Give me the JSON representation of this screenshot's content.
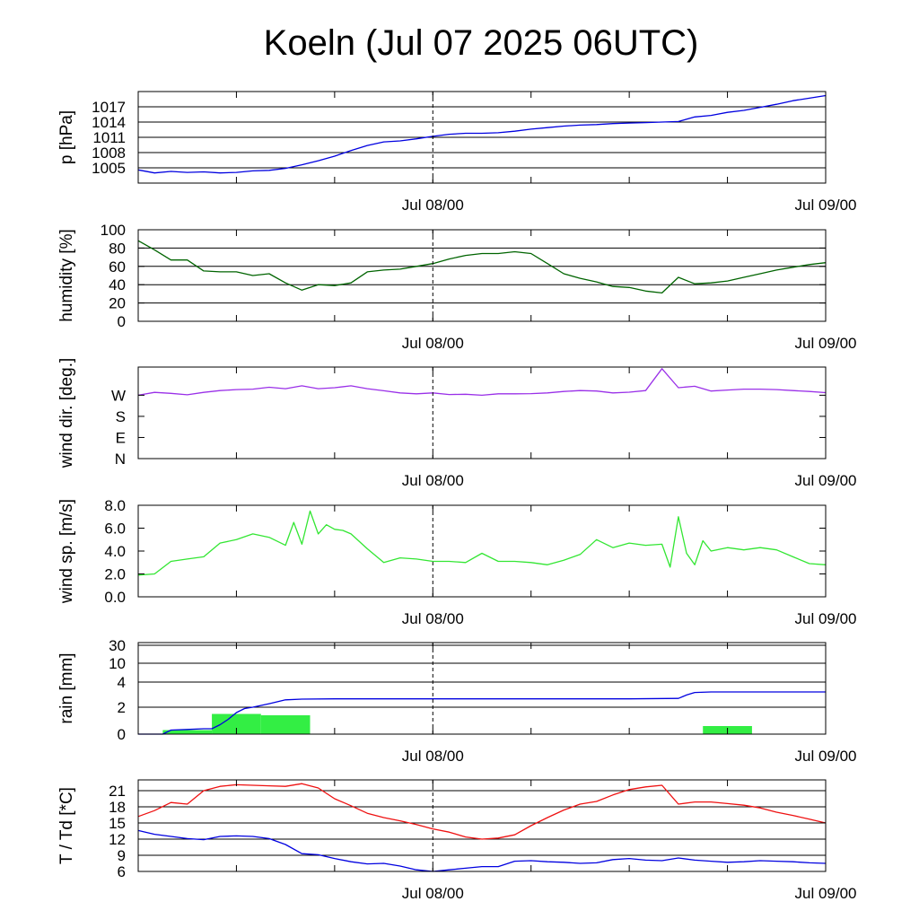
{
  "title": "Koeln (Jul 07 2025 06UTC)",
  "chart_data": [
    {
      "type": "line",
      "ylabel": "p [hPa]",
      "ylim": [
        1002,
        1020
      ],
      "yticks": [
        1005,
        1008,
        1011,
        1014,
        1017
      ],
      "ytick_labels": [
        "1005",
        "1008",
        "1011",
        "1014",
        "1017"
      ],
      "grid": "horizontal",
      "x_tick_labels": [
        "Jul 08/00",
        "Jul 09/00"
      ],
      "series": [
        {
          "color": "#0000e0",
          "x": [
            0,
            1,
            2,
            3,
            4,
            5,
            6,
            7,
            8,
            9,
            10,
            11,
            12,
            13,
            14,
            15,
            16,
            17,
            18,
            19,
            20,
            21,
            22,
            23,
            24,
            25,
            26,
            27,
            28,
            29,
            30,
            31,
            32,
            33,
            34,
            35,
            36,
            37,
            38,
            39,
            40,
            41,
            42
          ],
          "y": [
            1004.6,
            1004.0,
            1004.3,
            1004.1,
            1004.2,
            1004.0,
            1004.1,
            1004.4,
            1004.5,
            1004.9,
            1005.6,
            1006.4,
            1007.3,
            1008.4,
            1009.4,
            1010.1,
            1010.3,
            1010.7,
            1011.2,
            1011.6,
            1011.8,
            1011.8,
            1011.9,
            1012.2,
            1012.6,
            1012.9,
            1013.2,
            1013.4,
            1013.5,
            1013.7,
            1013.8,
            1013.9,
            1014.0,
            1014.1,
            1015.0,
            1015.3,
            1015.9,
            1016.3,
            1016.9,
            1017.5,
            1018.2,
            1018.7,
            1019.2
          ]
        }
      ]
    },
    {
      "type": "line",
      "ylabel": "humidity [%]",
      "ylim": [
        0,
        100
      ],
      "yticks": [
        0,
        20,
        40,
        60,
        80,
        100
      ],
      "ytick_labels": [
        "0",
        "20",
        "40",
        "60",
        "80",
        "100"
      ],
      "grid": "horizontal",
      "x_tick_labels": [
        "Jul 08/00",
        "Jul 09/00"
      ],
      "series": [
        {
          "color": "#006400",
          "x": [
            0,
            1,
            2,
            3,
            4,
            5,
            6,
            7,
            8,
            9,
            10,
            11,
            12,
            13,
            14,
            15,
            16,
            17,
            18,
            19,
            20,
            21,
            22,
            23,
            24,
            25,
            26,
            27,
            28,
            29,
            30,
            31,
            32,
            33,
            34,
            35,
            36,
            37,
            38,
            39,
            40,
            41,
            42
          ],
          "y": [
            88,
            78,
            67,
            67,
            55,
            54,
            54,
            50,
            52,
            42,
            34,
            40,
            39,
            42,
            54,
            56,
            57,
            60,
            63,
            68,
            72,
            74,
            74,
            76,
            74,
            63,
            52,
            47,
            43,
            38,
            37,
            33,
            31,
            48,
            41,
            42,
            44,
            48,
            52,
            56,
            59,
            62,
            64
          ]
        }
      ]
    },
    {
      "type": "line",
      "ylabel": "wind dir. [deg.]",
      "ylim": [
        0,
        390
      ],
      "yticks": [
        0,
        90,
        180,
        270
      ],
      "ytick_labels": [
        "N",
        "E",
        "S",
        "W"
      ],
      "grid": "none",
      "x_tick_labels": [
        "Jul 08/00",
        "Jul 09/00"
      ],
      "series": [
        {
          "color": "#9a30e8",
          "x": [
            0,
            1,
            2,
            3,
            4,
            5,
            6,
            7,
            8,
            9,
            10,
            11,
            12,
            13,
            14,
            15,
            16,
            17,
            18,
            19,
            20,
            21,
            22,
            23,
            24,
            25,
            26,
            27,
            28,
            29,
            30,
            31,
            32,
            33,
            34,
            35,
            36,
            37,
            38,
            39,
            40,
            41,
            42
          ],
          "y": [
            270,
            282,
            278,
            272,
            282,
            290,
            294,
            296,
            304,
            298,
            310,
            298,
            302,
            310,
            298,
            289,
            280,
            276,
            280,
            273,
            274,
            270,
            276,
            276,
            277,
            280,
            286,
            290,
            288,
            280,
            283,
            290,
            383,
            302,
            308,
            288,
            292,
            296,
            296,
            294,
            290,
            286,
            281
          ]
        }
      ]
    },
    {
      "type": "line",
      "ylabel": "wind sp. [m/s]",
      "ylim": [
        0,
        8
      ],
      "yticks": [
        0,
        2,
        4,
        6,
        8
      ],
      "ytick_labels": [
        "0.0",
        "2.0",
        "4.0",
        "6.0",
        "8.0"
      ],
      "grid": "none",
      "x_tick_labels": [
        "Jul 08/00",
        "Jul 09/00"
      ],
      "series": [
        {
          "color": "#33e633",
          "x": [
            0,
            1,
            2,
            3,
            4,
            5,
            6,
            7,
            8,
            9,
            9.5,
            10,
            10.5,
            11,
            11.5,
            12,
            12.5,
            13,
            14,
            15,
            16,
            17,
            18,
            19,
            20,
            21,
            22,
            23,
            24,
            25,
            26,
            27,
            28,
            29,
            30,
            31,
            32,
            32.5,
            33,
            33.5,
            34,
            34.5,
            35,
            36,
            37,
            38,
            39,
            40,
            41,
            42
          ],
          "y": [
            1.9,
            2.0,
            3.1,
            3.3,
            3.5,
            4.7,
            5.0,
            5.5,
            5.2,
            4.5,
            6.5,
            4.6,
            7.5,
            5.5,
            6.3,
            5.9,
            5.8,
            5.5,
            4.2,
            3.0,
            3.4,
            3.3,
            3.1,
            3.1,
            3.0,
            3.8,
            3.1,
            3.1,
            3.0,
            2.8,
            3.2,
            3.7,
            5.0,
            4.3,
            4.7,
            4.5,
            4.6,
            2.6,
            7.0,
            3.8,
            2.8,
            4.9,
            4.0,
            4.3,
            4.1,
            4.3,
            4.1,
            3.5,
            2.9,
            2.8
          ]
        }
      ]
    },
    {
      "type": "bar",
      "ylabel": "rain [mm]",
      "ylim": [
        0,
        30
      ],
      "yticks": [
        0,
        2,
        4,
        10,
        30
      ],
      "ytick_labels": [
        "0",
        "2",
        "4",
        "10",
        "30"
      ],
      "scale": "nonlinear",
      "grid": "horizontal",
      "x_tick_labels": [
        "Jul 08/00",
        "Jul 09/00"
      ],
      "bars": {
        "color": "#33ee44",
        "x0": [
          1.5,
          4.5,
          7.5,
          34.5
        ],
        "x1": [
          4.5,
          7.5,
          10.5,
          37.5
        ],
        "values": [
          0.3,
          1.5,
          1.4,
          0.6
        ]
      },
      "series": [
        {
          "color": "#0000e0",
          "x": [
            0,
            1.5,
            2,
            3,
            4,
            4.5,
            5,
            5.5,
            6,
            6.5,
            7,
            8,
            9,
            10,
            12,
            15,
            20,
            25,
            30,
            33,
            33.5,
            34,
            35,
            42
          ],
          "y": [
            0,
            0,
            0.3,
            0.35,
            0.4,
            0.4,
            0.7,
            1.1,
            1.6,
            1.9,
            2.0,
            2.2,
            2.45,
            2.5,
            2.52,
            2.52,
            2.52,
            2.52,
            2.52,
            2.55,
            2.8,
            3.0,
            3.05,
            3.05
          ]
        }
      ]
    },
    {
      "type": "line",
      "ylabel": "T / Td [*C]",
      "ylim": [
        6,
        23
      ],
      "yticks": [
        6,
        9,
        12,
        15,
        18,
        21
      ],
      "ytick_labels": [
        "6",
        "9",
        "12",
        "15",
        "18",
        "21"
      ],
      "grid": "horizontal",
      "x_tick_labels": [
        "Jul 08/00",
        "Jul 09/00"
      ],
      "series": [
        {
          "color": "#ee1111",
          "x": [
            0,
            1,
            2,
            3,
            4,
            5,
            6,
            7,
            8,
            9,
            10,
            11,
            12,
            13,
            14,
            15,
            16,
            17,
            18,
            19,
            20,
            21,
            22,
            23,
            24,
            25,
            26,
            27,
            28,
            29,
            30,
            31,
            32,
            33,
            34,
            35,
            36,
            37,
            38,
            39,
            40,
            41,
            42
          ],
          "y": [
            16.2,
            17.3,
            18.8,
            18.5,
            21.0,
            21.8,
            22.1,
            22.0,
            21.9,
            21.8,
            22.3,
            21.5,
            19.5,
            18.2,
            16.8,
            16.0,
            15.4,
            14.7,
            13.9,
            13.3,
            12.4,
            12.0,
            12.2,
            12.8,
            14.5,
            16.0,
            17.4,
            18.5,
            19.0,
            20.2,
            21.2,
            21.7,
            22.0,
            18.5,
            18.9,
            18.9,
            18.6,
            18.3,
            17.8,
            17.0,
            16.4,
            15.7,
            15.0
          ]
        },
        {
          "color": "#0000e0",
          "x": [
            0,
            1,
            2,
            3,
            4,
            5,
            6,
            7,
            8,
            9,
            10,
            11,
            12,
            13,
            14,
            15,
            16,
            17,
            18,
            19,
            20,
            21,
            22,
            23,
            24,
            25,
            26,
            27,
            28,
            29,
            30,
            31,
            32,
            33,
            34,
            35,
            36,
            37,
            38,
            39,
            40,
            41,
            42
          ],
          "y": [
            13.6,
            12.9,
            12.5,
            12.1,
            11.9,
            12.5,
            12.6,
            12.5,
            12.1,
            11.0,
            9.3,
            9.1,
            8.4,
            7.8,
            7.4,
            7.5,
            7.0,
            6.3,
            6.0,
            6.3,
            6.6,
            6.9,
            6.9,
            7.9,
            8.0,
            7.8,
            7.7,
            7.5,
            7.6,
            8.2,
            8.4,
            8.1,
            8.0,
            8.5,
            8.1,
            7.9,
            7.7,
            7.8,
            8.0,
            7.9,
            7.8,
            7.6,
            7.5
          ]
        }
      ]
    }
  ]
}
